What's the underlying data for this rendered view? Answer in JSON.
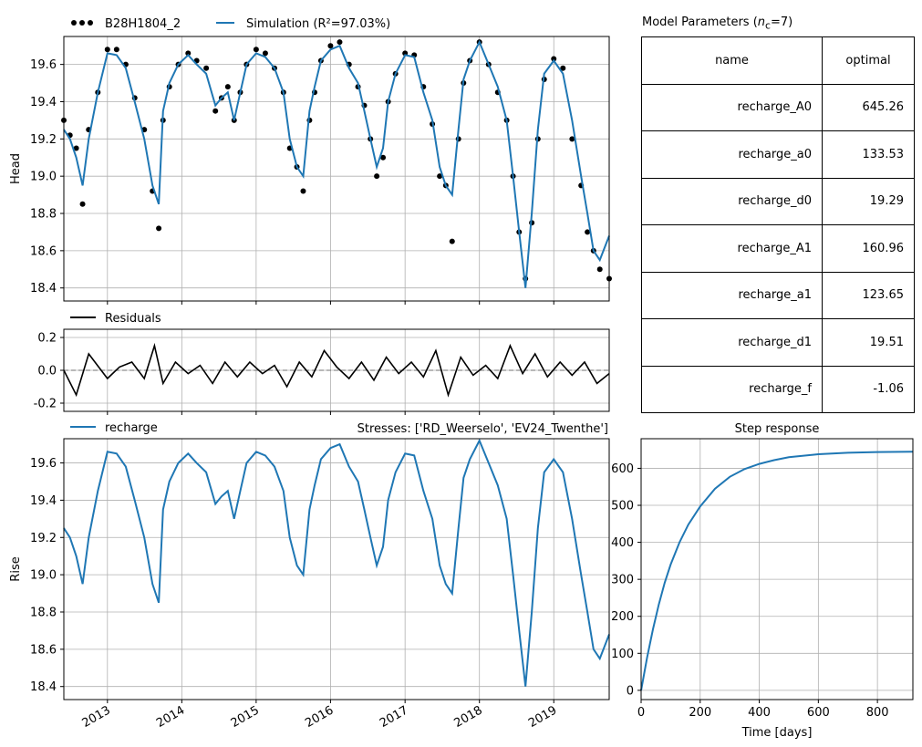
{
  "chart_data": [
    {
      "type": "line",
      "panel": "head",
      "ylabel": "Head",
      "ylim": [
        18.33,
        19.75
      ],
      "yticks": [
        18.4,
        18.6,
        18.8,
        19.0,
        19.2,
        19.4,
        19.6
      ],
      "xlim": [
        "2012-06-01",
        "2019-09-30"
      ],
      "legend": {
        "placement": "top-left, above axes",
        "entries": [
          "B28H1804_2",
          "Simulation"
        ]
      },
      "simulation_label": "Simulation (R²=97.03%)",
      "series": [
        {
          "name": "B28H1804_2",
          "style": "black dots",
          "x": [
            "2012-06-01",
            "2012-07-01",
            "2012-08-01",
            "2012-09-01",
            "2012-10-01",
            "2012-11-15",
            "2013-01-01",
            "2013-02-15",
            "2013-04-01",
            "2013-05-15",
            "2013-07-01",
            "2013-08-10",
            "2013-09-10",
            "2013-10-01",
            "2013-11-01",
            "2013-12-15",
            "2014-02-01",
            "2014-03-15",
            "2014-05-01",
            "2014-06-15",
            "2014-07-15",
            "2014-08-15",
            "2014-09-15",
            "2014-10-15",
            "2014-11-15",
            "2015-01-01",
            "2015-02-15",
            "2015-04-01",
            "2015-05-15",
            "2015-06-15",
            "2015-07-20",
            "2015-08-20",
            "2015-09-20",
            "2015-10-15",
            "2015-11-15",
            "2016-01-01",
            "2016-02-15",
            "2016-04-01",
            "2016-05-15",
            "2016-06-15",
            "2016-07-15",
            "2016-08-15",
            "2016-09-15",
            "2016-10-10",
            "2016-11-15",
            "2017-01-01",
            "2017-02-15",
            "2017-04-01",
            "2017-05-15",
            "2017-06-20",
            "2017-07-20",
            "2017-08-20",
            "2017-09-20",
            "2017-10-15",
            "2017-11-15",
            "2018-01-01",
            "2018-02-15",
            "2018-04-01",
            "2018-05-15",
            "2018-06-15",
            "2018-07-15",
            "2018-08-15",
            "2018-09-15",
            "2018-10-15",
            "2018-11-15",
            "2019-01-01",
            "2019-02-15",
            "2019-04-01",
            "2019-05-15",
            "2019-06-15",
            "2019-07-15",
            "2019-08-15",
            "2019-09-30"
          ],
          "values": [
            19.3,
            19.22,
            19.15,
            18.85,
            19.25,
            19.45,
            19.68,
            19.68,
            19.6,
            19.42,
            19.25,
            18.92,
            18.72,
            19.3,
            19.48,
            19.6,
            19.66,
            19.62,
            19.58,
            19.35,
            19.42,
            19.48,
            19.3,
            19.45,
            19.6,
            19.68,
            19.66,
            19.58,
            19.45,
            19.15,
            19.05,
            18.92,
            19.3,
            19.45,
            19.62,
            19.7,
            19.72,
            19.6,
            19.48,
            19.38,
            19.2,
            19.0,
            19.1,
            19.4,
            19.55,
            19.66,
            19.65,
            19.48,
            19.28,
            19.0,
            18.95,
            18.65,
            19.2,
            19.5,
            19.62,
            19.72,
            19.6,
            19.45,
            19.3,
            19.0,
            18.7,
            18.45,
            18.75,
            19.2,
            19.52,
            19.63,
            19.58,
            19.2,
            18.95,
            18.7,
            18.6,
            18.5,
            18.45
          ]
        },
        {
          "name": "Simulation",
          "style": "blue line",
          "x": [
            "2012-06-01",
            "2012-07-01",
            "2012-08-01",
            "2012-09-01",
            "2012-10-01",
            "2012-11-15",
            "2013-01-01",
            "2013-02-15",
            "2013-04-01",
            "2013-05-15",
            "2013-07-01",
            "2013-08-10",
            "2013-09-10",
            "2013-10-01",
            "2013-11-01",
            "2013-12-15",
            "2014-02-01",
            "2014-03-15",
            "2014-05-01",
            "2014-06-15",
            "2014-07-15",
            "2014-08-15",
            "2014-09-15",
            "2014-10-15",
            "2014-11-15",
            "2015-01-01",
            "2015-02-15",
            "2015-04-01",
            "2015-05-15",
            "2015-06-15",
            "2015-07-20",
            "2015-08-20",
            "2015-09-20",
            "2015-10-15",
            "2015-11-15",
            "2016-01-01",
            "2016-02-15",
            "2016-04-01",
            "2016-05-15",
            "2016-06-15",
            "2016-07-15",
            "2016-08-15",
            "2016-09-15",
            "2016-10-10",
            "2016-11-15",
            "2017-01-01",
            "2017-02-15",
            "2017-04-01",
            "2017-05-15",
            "2017-06-20",
            "2017-07-20",
            "2017-08-20",
            "2017-09-20",
            "2017-10-15",
            "2017-11-15",
            "2018-01-01",
            "2018-02-15",
            "2018-04-01",
            "2018-05-15",
            "2018-06-15",
            "2018-07-15",
            "2018-08-15",
            "2018-09-15",
            "2018-10-15",
            "2018-11-15",
            "2019-01-01",
            "2019-02-15",
            "2019-04-01",
            "2019-05-15",
            "2019-06-15",
            "2019-07-15",
            "2019-08-15",
            "2019-09-30"
          ],
          "values": [
            19.25,
            19.2,
            19.1,
            18.95,
            19.2,
            19.45,
            19.66,
            19.65,
            19.58,
            19.4,
            19.2,
            18.95,
            18.85,
            19.35,
            19.5,
            19.6,
            19.65,
            19.6,
            19.55,
            19.38,
            19.42,
            19.45,
            19.3,
            19.45,
            19.6,
            19.66,
            19.64,
            19.58,
            19.45,
            19.2,
            19.05,
            19.0,
            19.35,
            19.48,
            19.62,
            19.68,
            19.7,
            19.58,
            19.5,
            19.35,
            19.2,
            19.05,
            19.15,
            19.4,
            19.55,
            19.65,
            19.64,
            19.45,
            19.3,
            19.05,
            18.95,
            18.9,
            19.25,
            19.52,
            19.62,
            19.72,
            19.6,
            19.48,
            19.3,
            19.0,
            18.7,
            18.4,
            18.8,
            19.25,
            19.55,
            19.62,
            19.55,
            19.3,
            19.0,
            18.8,
            18.6,
            18.55,
            18.68
          ]
        }
      ]
    },
    {
      "type": "line",
      "panel": "residuals",
      "ylim": [
        -0.25,
        0.25
      ],
      "yticks": [
        -0.2,
        0.0,
        0.2
      ],
      "legend": {
        "placement": "top-left, above axes",
        "entries": [
          "Residuals"
        ]
      },
      "series": [
        {
          "name": "Residuals",
          "x": [
            "2012-06-01",
            "2012-08-01",
            "2012-10-01",
            "2013-01-01",
            "2013-03-01",
            "2013-05-01",
            "2013-07-01",
            "2013-08-20",
            "2013-10-01",
            "2013-12-01",
            "2014-02-01",
            "2014-04-01",
            "2014-06-01",
            "2014-08-01",
            "2014-10-01",
            "2014-12-01",
            "2015-02-01",
            "2015-04-01",
            "2015-06-01",
            "2015-08-01",
            "2015-10-01",
            "2015-12-01",
            "2016-02-01",
            "2016-04-01",
            "2016-06-01",
            "2016-08-01",
            "2016-10-01",
            "2016-12-01",
            "2017-02-01",
            "2017-04-01",
            "2017-06-01",
            "2017-08-01",
            "2017-10-01",
            "2017-12-01",
            "2018-02-01",
            "2018-04-01",
            "2018-06-01",
            "2018-08-01",
            "2018-10-01",
            "2018-12-01",
            "2019-02-01",
            "2019-04-01",
            "2019-06-01",
            "2019-08-01",
            "2019-09-30"
          ],
          "values": [
            0.0,
            -0.15,
            0.1,
            -0.05,
            0.02,
            0.05,
            -0.05,
            0.15,
            -0.08,
            0.05,
            -0.02,
            0.03,
            -0.08,
            0.05,
            -0.04,
            0.05,
            -0.02,
            0.03,
            -0.1,
            0.05,
            -0.04,
            0.12,
            0.02,
            -0.05,
            0.05,
            -0.06,
            0.08,
            -0.02,
            0.05,
            -0.04,
            0.12,
            -0.15,
            0.08,
            -0.03,
            0.03,
            -0.05,
            0.15,
            -0.02,
            0.1,
            -0.04,
            0.05,
            -0.03,
            0.05,
            -0.08,
            -0.02
          ]
        }
      ]
    },
    {
      "type": "line",
      "panel": "contribution",
      "title": "Stresses: ['RD_Weerselo', 'EV24_Twenthe']",
      "ylabel": "Rise",
      "ylim": [
        18.33,
        19.73
      ],
      "yticks": [
        18.4,
        18.6,
        18.8,
        19.0,
        19.2,
        19.4,
        19.6
      ],
      "xticks": [
        "2013",
        "2014",
        "2015",
        "2016",
        "2017",
        "2018",
        "2019"
      ],
      "legend": {
        "placement": "top-left, above axes",
        "entries": [
          "recharge"
        ]
      },
      "series": [
        {
          "name": "recharge",
          "x": [
            "2012-06-01",
            "2012-07-01",
            "2012-08-01",
            "2012-09-01",
            "2012-10-01",
            "2012-11-15",
            "2013-01-01",
            "2013-02-15",
            "2013-04-01",
            "2013-05-15",
            "2013-07-01",
            "2013-08-10",
            "2013-09-10",
            "2013-10-01",
            "2013-11-01",
            "2013-12-15",
            "2014-02-01",
            "2014-03-15",
            "2014-05-01",
            "2014-06-15",
            "2014-07-15",
            "2014-08-15",
            "2014-09-15",
            "2014-10-15",
            "2014-11-15",
            "2015-01-01",
            "2015-02-15",
            "2015-04-01",
            "2015-05-15",
            "2015-06-15",
            "2015-07-20",
            "2015-08-20",
            "2015-09-20",
            "2015-10-15",
            "2015-11-15",
            "2016-01-01",
            "2016-02-15",
            "2016-04-01",
            "2016-05-15",
            "2016-06-15",
            "2016-07-15",
            "2016-08-15",
            "2016-09-15",
            "2016-10-10",
            "2016-11-15",
            "2017-01-01",
            "2017-02-15",
            "2017-04-01",
            "2017-05-15",
            "2017-06-20",
            "2017-07-20",
            "2017-08-20",
            "2017-09-20",
            "2017-10-15",
            "2017-11-15",
            "2018-01-01",
            "2018-02-15",
            "2018-04-01",
            "2018-05-15",
            "2018-06-15",
            "2018-07-15",
            "2018-08-15",
            "2018-09-15",
            "2018-10-15",
            "2018-11-15",
            "2019-01-01",
            "2019-02-15",
            "2019-04-01",
            "2019-05-15",
            "2019-06-15",
            "2019-07-15",
            "2019-08-15",
            "2019-09-30"
          ],
          "values": [
            19.25,
            19.2,
            19.1,
            18.95,
            19.2,
            19.45,
            19.66,
            19.65,
            19.58,
            19.4,
            19.2,
            18.95,
            18.85,
            19.35,
            19.5,
            19.6,
            19.65,
            19.6,
            19.55,
            19.38,
            19.42,
            19.45,
            19.3,
            19.45,
            19.6,
            19.66,
            19.64,
            19.58,
            19.45,
            19.2,
            19.05,
            19.0,
            19.35,
            19.48,
            19.62,
            19.68,
            19.7,
            19.58,
            19.5,
            19.35,
            19.2,
            19.05,
            19.15,
            19.4,
            19.55,
            19.65,
            19.64,
            19.45,
            19.3,
            19.05,
            18.95,
            18.9,
            19.25,
            19.52,
            19.62,
            19.72,
            19.6,
            19.48,
            19.3,
            19.0,
            18.7,
            18.4,
            18.8,
            19.25,
            19.55,
            19.62,
            19.55,
            19.3,
            19.0,
            18.8,
            18.6,
            18.55,
            18.68
          ]
        }
      ]
    },
    {
      "type": "line",
      "panel": "step-response",
      "title": "Step response",
      "xlabel": "Time [days]",
      "xlim": [
        0,
        920
      ],
      "ylim": [
        -25,
        680
      ],
      "xticks": [
        0,
        200,
        400,
        600,
        800
      ],
      "yticks": [
        0,
        100,
        200,
        300,
        400,
        500,
        600
      ],
      "series": [
        {
          "name": "recharge",
          "x": [
            0,
            20,
            40,
            60,
            80,
            100,
            130,
            160,
            200,
            250,
            300,
            350,
            400,
            450,
            500,
            600,
            700,
            800,
            920
          ],
          "values": [
            0,
            88,
            165,
            232,
            291,
            340,
            400,
            448,
            497,
            545,
            577,
            598,
            612,
            622,
            630,
            638,
            642,
            644,
            645
          ]
        }
      ]
    },
    {
      "type": "table",
      "panel": "parameters",
      "title_prefix": "Model Parameters (",
      "title_sym": "n",
      "title_sub": "c",
      "title_suffix": "=7)",
      "columns": [
        "name",
        "optimal"
      ],
      "rows": [
        [
          "recharge_A0",
          "645.26"
        ],
        [
          "recharge_a0",
          "133.53"
        ],
        [
          "recharge_d0",
          "19.29"
        ],
        [
          "recharge_A1",
          "160.96"
        ],
        [
          "recharge_a1",
          "123.65"
        ],
        [
          "recharge_d1",
          "19.51"
        ],
        [
          "recharge_f",
          "-1.06"
        ]
      ]
    }
  ],
  "colors": {
    "simulation": "#1f77b4",
    "observed": "#000000",
    "residuals": "#000000",
    "grid": "#b0b0b0"
  }
}
